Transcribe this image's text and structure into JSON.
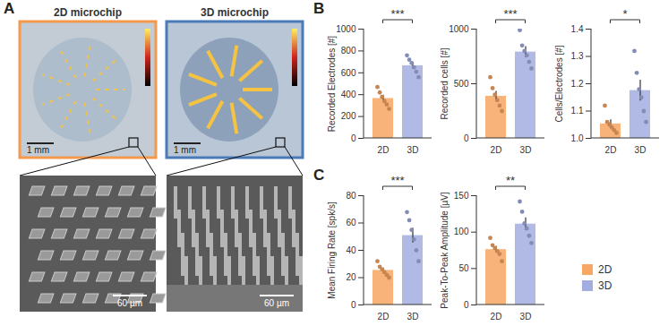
{
  "panel_labels": [
    "A",
    "B",
    "C"
  ],
  "images": [
    {
      "title": "2D microchip",
      "scale_bars": [
        "1 mm",
        "60 µm"
      ],
      "color": "#f39a4f"
    },
    {
      "title": "3D microchip",
      "scale_bars": [
        "1 mm",
        "60 µm"
      ],
      "color": "#4a7ab8"
    }
  ],
  "legend": "lower right",
  "chart_data": [
    {
      "type": "bar",
      "ylabel": "Recorded Electrodes [#]",
      "categories": [
        "2D",
        "3D"
      ],
      "values": [
        365,
        665
      ],
      "errors": [
        30,
        30
      ],
      "points": [
        [
          470,
          420,
          380,
          340,
          310,
          270
        ],
        [
          760,
          720,
          690,
          650,
          610,
          560
        ]
      ],
      "colors": [
        "#f7a664",
        "#a3aee0"
      ],
      "ylim": [
        0,
        1000
      ],
      "yticks": [
        0,
        200,
        400,
        600,
        800,
        1000
      ],
      "annotations": [
        "***"
      ]
    },
    {
      "type": "bar",
      "ylabel": "Recorded cells [#]",
      "categories": [
        "2D",
        "3D"
      ],
      "values": [
        385,
        790
      ],
      "errors": [
        45,
        50
      ],
      "points": [
        [
          560,
          460,
          400,
          350,
          300,
          250
        ],
        [
          990,
          850,
          800,
          760,
          700,
          640
        ]
      ],
      "colors": [
        "#f7a664",
        "#a3aee0"
      ],
      "ylim": [
        0,
        1000
      ],
      "yticks": [
        0,
        500,
        1000
      ],
      "annotations": [
        "***"
      ]
    },
    {
      "type": "bar",
      "ylabel": "Cells/Electrodes [#]",
      "categories": [
        "2D",
        "3D"
      ],
      "values": [
        1.053,
        1.175
      ],
      "errors": [
        0.015,
        0.038
      ],
      "points": [
        [
          1.12,
          1.06,
          1.05,
          1.04,
          1.03,
          1.02
        ],
        [
          1.32,
          1.24,
          1.18,
          1.15,
          1.1,
          1.06
        ]
      ],
      "colors": [
        "#f7a664",
        "#a3aee0"
      ],
      "ylim": [
        1,
        1.4
      ],
      "yticks": [
        {
          "value": 1,
          "label": "1.0"
        },
        1.1,
        1.2,
        1.3,
        1.4
      ],
      "annotations": [
        "*"
      ]
    },
    {
      "type": "bar",
      "ylabel": "Mean Firing Rate [spk/s]",
      "categories": [
        "2D",
        "3D"
      ],
      "values": [
        25.3,
        50.8
      ],
      "errors": [
        1.8,
        5.4
      ],
      "points": [
        [
          32,
          28,
          26,
          24,
          22,
          20
        ],
        [
          68,
          62,
          55,
          48,
          40,
          32
        ]
      ],
      "colors": [
        "#f7a664",
        "#a3aee0"
      ],
      "ylim": [
        0,
        80
      ],
      "yticks": [
        0,
        20,
        40,
        60,
        80
      ],
      "annotations": [
        "***"
      ]
    },
    {
      "type": "bar",
      "ylabel": "Peak-To-Peak Amplitude [µV]",
      "categories": [
        "2D",
        "3D"
      ],
      "values": [
        76,
        111
      ],
      "errors": [
        4.5,
        8.5
      ],
      "points": [
        [
          92,
          82,
          78,
          74,
          70,
          60
        ],
        [
          142,
          128,
          112,
          105,
          95,
          85
        ]
      ],
      "colors": [
        "#f7a664",
        "#a3aee0"
      ],
      "ylim": [
        0,
        150
      ],
      "yticks": [
        0,
        50,
        100,
        150
      ],
      "annotations": [
        "**"
      ]
    }
  ]
}
